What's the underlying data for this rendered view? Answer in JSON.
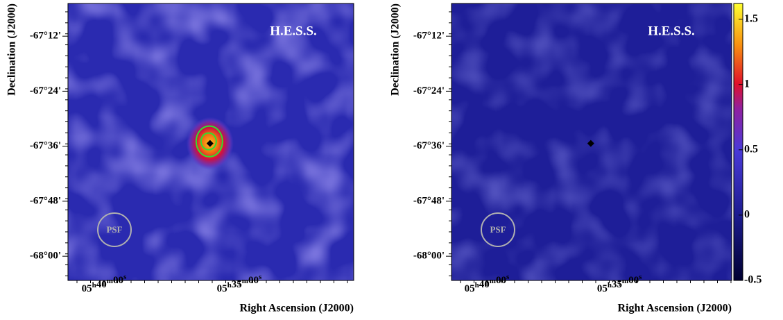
{
  "chart_data": [
    {
      "type": "heatmap",
      "title": "H.E.S.S.",
      "xlabel": "Right Ascension (J2000)",
      "ylabel": "Declination (J2000)",
      "xlim": [
        85.333,
        82.692
      ],
      "ylim": [
        -68.088,
        -67.081
      ],
      "xticks": [
        {
          "value": 85.0,
          "label": "05h40m00s"
        },
        {
          "value": 83.75,
          "label": "05h35m00s"
        }
      ],
      "yticks": [
        {
          "value": -67.2,
          "label": "-67°12'"
        },
        {
          "value": -67.4,
          "label": "-67°24'"
        },
        {
          "value": -67.6,
          "label": "-67°36'"
        },
        {
          "value": -67.8,
          "label": "-67°48'"
        },
        {
          "value": -68.0,
          "label": "-68°00'"
        }
      ],
      "annotation": "PSF",
      "marker": {
        "x": 84.02,
        "y": -67.59
      },
      "contours": true
    },
    {
      "type": "heatmap",
      "title": "H.E.S.S.",
      "xlabel": "Right Ascension (J2000)",
      "ylabel": "Declination (J2000)",
      "xlim": [
        85.333,
        82.692
      ],
      "ylim": [
        -68.088,
        -67.081
      ],
      "xticks": [
        {
          "value": 85.0,
          "label": "05h40m00s"
        },
        {
          "value": 83.75,
          "label": "05h35m00s"
        }
      ],
      "yticks": [
        {
          "value": -67.2,
          "label": "-67°12'"
        },
        {
          "value": -67.4,
          "label": "-67°24'"
        },
        {
          "value": -67.6,
          "label": "-67°36'"
        },
        {
          "value": -67.8,
          "label": "-67°48'"
        },
        {
          "value": -68.0,
          "label": "-68°00'"
        }
      ],
      "annotation": "PSF",
      "marker": {
        "x": 84.02,
        "y": -67.59
      },
      "contours": false,
      "colorbar": {
        "lim": [
          -0.5,
          1.62
        ],
        "ticks": [
          -0.5,
          0,
          0.5,
          1,
          1.5
        ]
      }
    }
  ]
}
